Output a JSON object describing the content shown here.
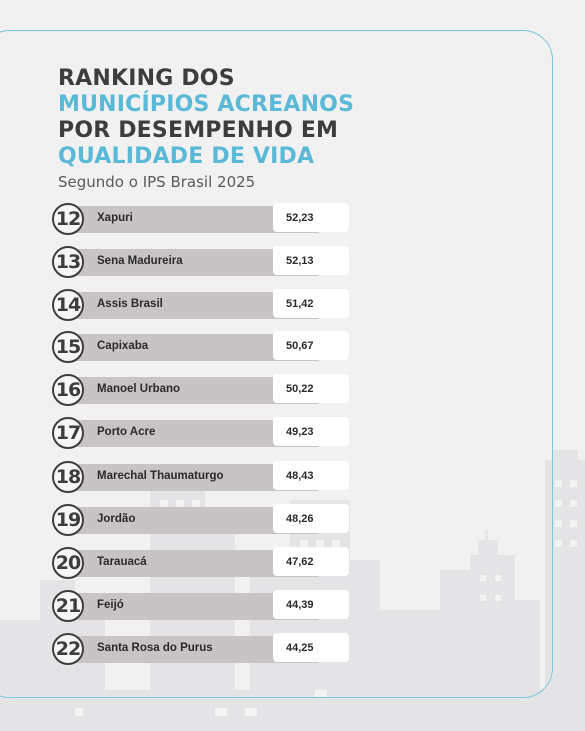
{
  "title": {
    "line1": "RANKING DOS",
    "line2": "MUNICÍPIOS ACREANOS",
    "line3": "POR DESEMPENHO EM",
    "line4": "QUALIDADE DE VIDA"
  },
  "subtitle": "Segundo o IPS Brasil 2025",
  "colors": {
    "accent": "#5ab9d6",
    "dark": "#3d3d3d",
    "bar": "#c8c3c4"
  },
  "chart_data": {
    "type": "table",
    "ranks": [
      "12",
      "13",
      "14",
      "15",
      "16",
      "17",
      "18",
      "19",
      "20",
      "21",
      "22"
    ],
    "categories": [
      "Xapuri",
      "Sena Madureira",
      "Assis Brasil",
      "Capixaba",
      "Manoel Urbano",
      "Porto Acre",
      "Marechal Thaumaturgo",
      "Jordão",
      "Tarauacá",
      "Feijó",
      "Santa Rosa do Purus"
    ],
    "value_labels": [
      "52,23",
      "52,13",
      "51,42",
      "50,67",
      "50,22",
      "49,23",
      "48,43",
      "48,26",
      "47,62",
      "44,39",
      "44,25"
    ],
    "values": [
      52.23,
      52.13,
      51.42,
      50.67,
      50.22,
      49.23,
      48.43,
      48.26,
      47.62,
      44.39,
      44.25
    ]
  }
}
